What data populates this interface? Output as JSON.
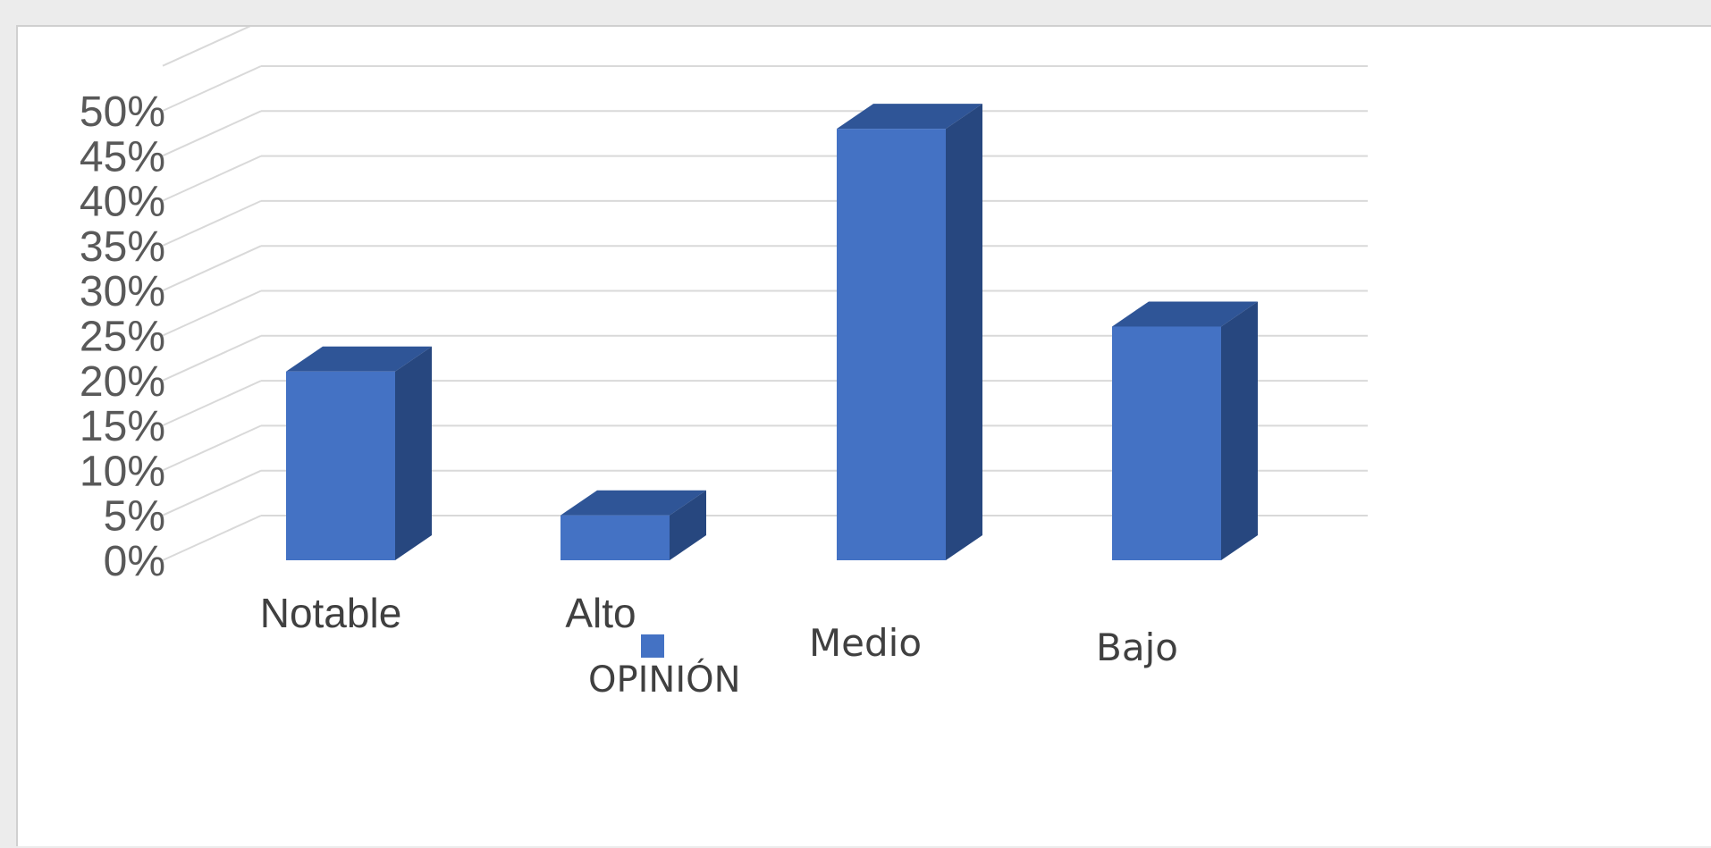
{
  "chart_data": {
    "type": "bar",
    "three_d": true,
    "categories": [
      "Notable",
      "Alto",
      "Medio",
      "Bajo"
    ],
    "series": [
      {
        "name": "OPINIÓN",
        "values": [
          0.21,
          0.05,
          0.48,
          0.26
        ],
        "color": "#4472c4"
      }
    ],
    "y_ticks": [
      "0%",
      "5%",
      "10%",
      "15%",
      "20%",
      "25%",
      "30%",
      "35%",
      "40%",
      "45%",
      "50%"
    ],
    "ylim": [
      0,
      0.55
    ],
    "grid": true,
    "legend": {
      "position": "bottom",
      "entries": [
        "OPINIÓN"
      ]
    },
    "colors": {
      "bar_front": "#4472c4",
      "bar_top": "#2f5597",
      "bar_side": "#27477f",
      "grid": "#d9d9d9"
    }
  }
}
